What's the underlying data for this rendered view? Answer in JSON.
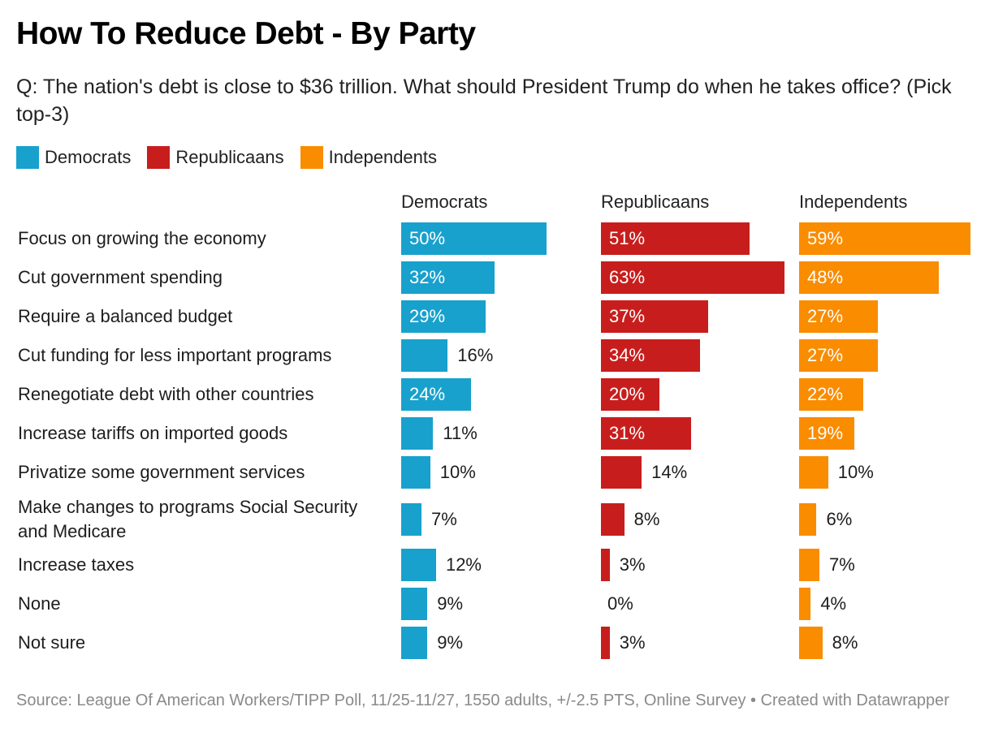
{
  "title": "How To Reduce Debt - By Party",
  "subtitle": "Q: The nation's debt is close to $36 trillion. What should President Trump do when he takes office? (Pick top-3)",
  "footer": "Source: League Of American Workers/TIPP Poll, 11/25-11/27, 1550 adults, +/-2.5 PTS, Online Survey • Created with Datawrapper",
  "chart_data": {
    "type": "bar",
    "orientation": "horizontal",
    "layout": "small-multiples",
    "title": "How To Reduce Debt - By Party",
    "subtitle": "Q: The nation's debt is close to $36 trillion. What should President Trump do when he takes office? (Pick top-3)",
    "unit": "%",
    "xlim": [
      0,
      65
    ],
    "grid": false,
    "legend_position": "top-left",
    "categories": [
      "Focus on growing the economy",
      "Cut government spending",
      "Require a balanced budget",
      "Cut funding for less important programs",
      "Renegotiate debt with other countries",
      "Increase tariffs on imported goods",
      "Privatize some government services",
      "Make changes to programs Social Security and Medicare",
      "Increase taxes",
      "None",
      "Not sure"
    ],
    "series": [
      {
        "name": "Democrats",
        "color": "#18a1cd",
        "values": [
          50,
          32,
          29,
          16,
          24,
          11,
          10,
          7,
          12,
          9,
          9
        ]
      },
      {
        "name": "Republicaans",
        "color": "#c71e1d",
        "values": [
          51,
          63,
          37,
          34,
          20,
          31,
          14,
          8,
          3,
          0,
          3
        ]
      },
      {
        "name": "Independents",
        "color": "#fa8c00",
        "values": [
          59,
          48,
          27,
          27,
          22,
          19,
          10,
          6,
          7,
          4,
          8
        ]
      }
    ],
    "source": "Source: League Of American Workers/TIPP Poll, 11/25-11/27, 1550 adults, +/-2.5 PTS, Online Survey • Created with Datawrapper"
  }
}
